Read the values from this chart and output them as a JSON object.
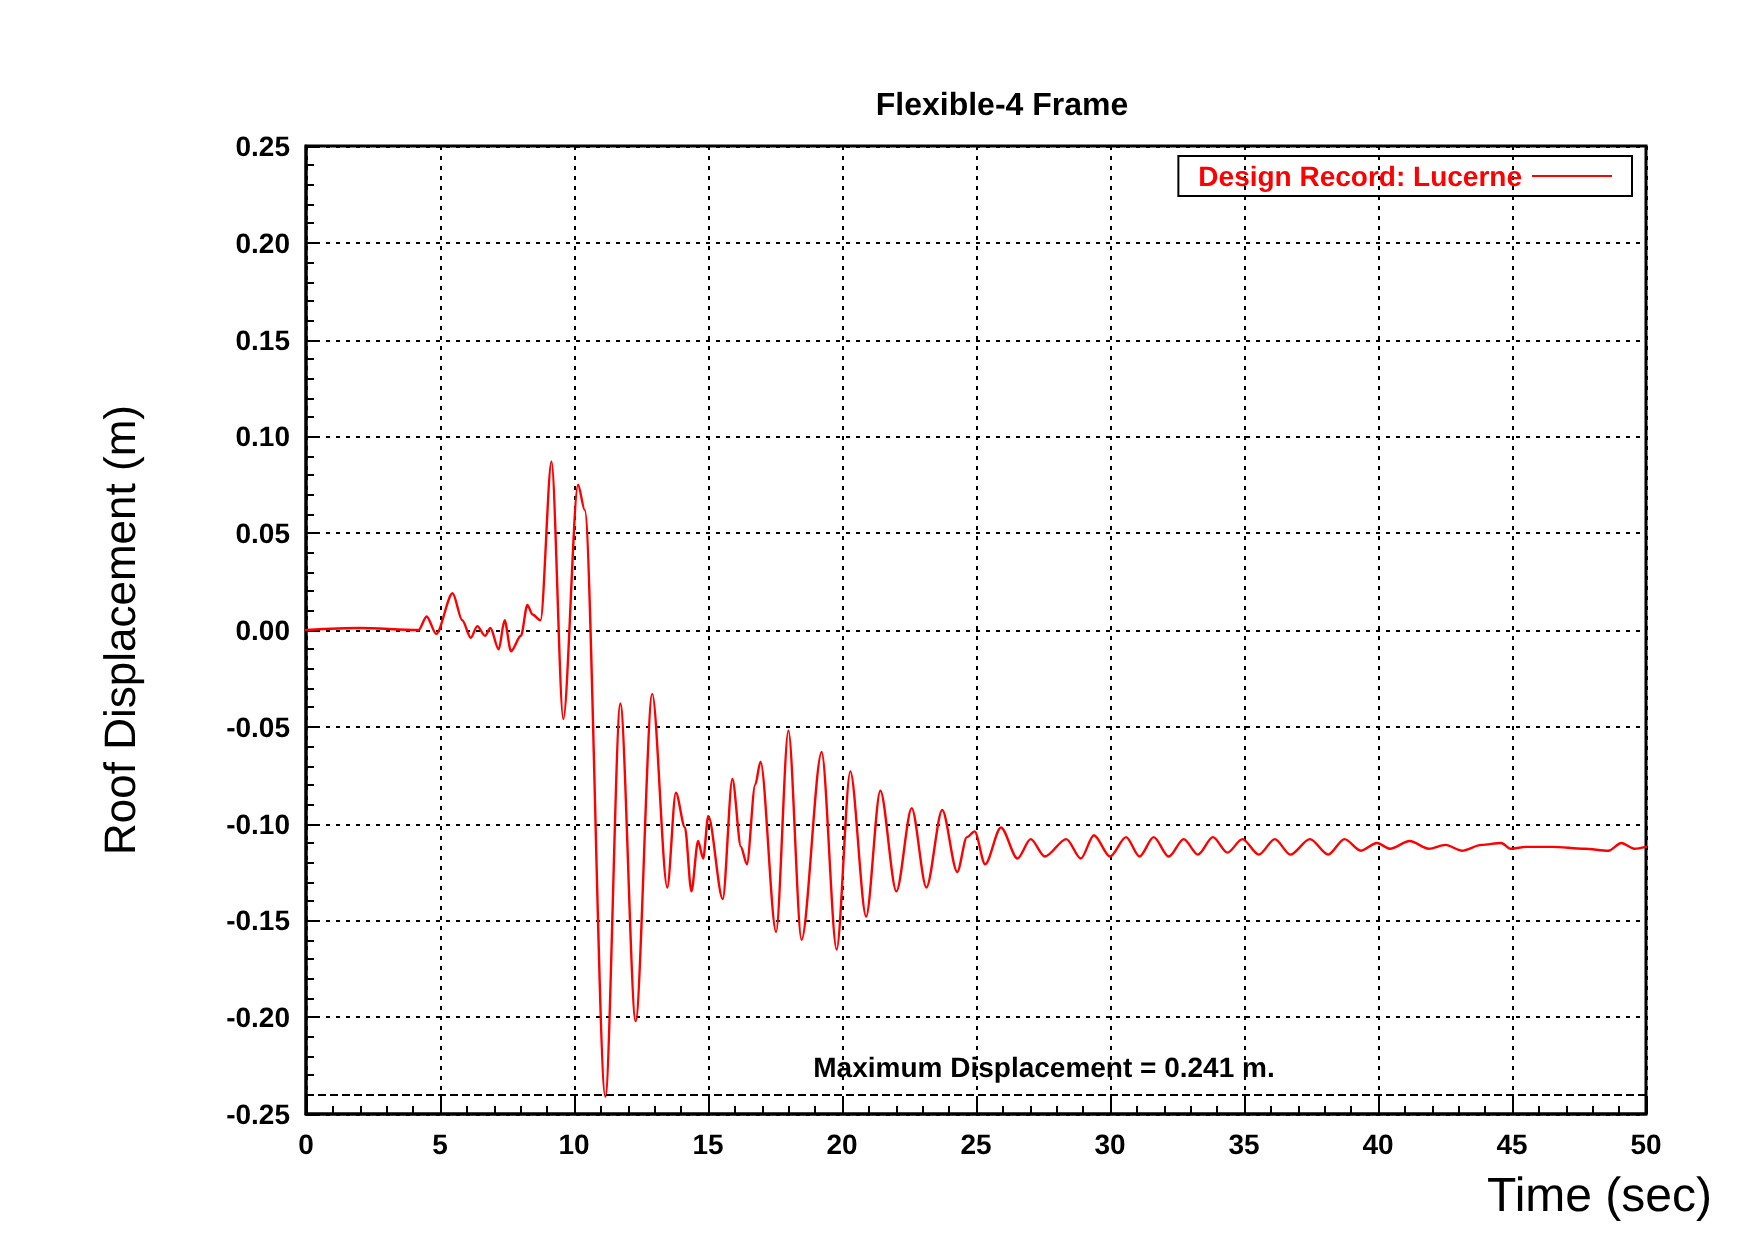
{
  "chart_data": {
    "type": "line",
    "title": "Flexible-4 Frame",
    "xlabel": "Time (sec)",
    "ylabel": "Roof Displacement (m)",
    "xlim": [
      0,
      50
    ],
    "xticks": [
      0,
      5,
      10,
      15,
      20,
      25,
      30,
      35,
      40,
      45,
      50
    ],
    "ylim": [
      -0.25,
      0.25
    ],
    "yticks": [
      {
        "value": -0.25,
        "label": "-0.25"
      },
      {
        "value": -0.2,
        "label": "-0.20"
      },
      {
        "value": -0.15,
        "label": "-0.15"
      },
      {
        "value": -0.1,
        "label": "-0.10"
      },
      {
        "value": -0.05,
        "label": "-0.05"
      },
      {
        "value": 0,
        "label": "0.00"
      },
      {
        "value": 0.05,
        "label": "0.05"
      },
      {
        "value": 0.1,
        "label": "0.10"
      },
      {
        "value": 0.15,
        "label": "0.15"
      },
      {
        "value": 0.2,
        "label": "0.20"
      },
      {
        "value": 0.25,
        "label": "0.25"
      }
    ],
    "grid": true,
    "legend": "top right",
    "marker": "none",
    "line_style": "solid",
    "annotations": [
      "Maximum Displacement = 0.241 m."
    ],
    "ref_lines": [
      {
        "axis": "y",
        "value": -0.241,
        "color": "#000000",
        "line_style": "dashed"
      }
    ],
    "series": [
      {
        "name": "Design Record: Lucerne",
        "color": "#ff0000",
        "x": [
          0,
          2,
          4.2,
          4.5,
          4.86,
          5.47,
          5.83,
          6.15,
          6.39,
          6.68,
          6.88,
          7.19,
          7.41,
          7.65,
          8.02,
          8.26,
          8.45,
          8.75,
          9.16,
          9.6,
          10.15,
          10.4,
          11.17,
          11.73,
          12.3,
          12.92,
          13.48,
          13.8,
          14.14,
          14.38,
          14.63,
          14.82,
          15.01,
          15.55,
          15.91,
          16.23,
          16.45,
          16.76,
          16.96,
          17.54,
          18.0,
          18.49,
          19.24,
          19.8,
          20.31,
          20.9,
          21.43,
          22.03,
          22.6,
          23.15,
          23.74,
          24.3,
          24.66,
          24.95,
          25.34,
          25.93,
          26.55,
          27.04,
          27.57,
          28.37,
          28.91,
          29.4,
          30.0,
          30.6,
          31.1,
          31.63,
          32.19,
          32.75,
          33.28,
          33.84,
          34.38,
          34.94,
          35.55,
          36.15,
          36.73,
          37.46,
          38.14,
          38.75,
          39.36,
          39.96,
          40.45,
          41.18,
          41.9,
          42.52,
          43.13,
          43.86,
          44.6,
          44.95,
          45.55,
          46.5,
          47.7,
          48.6,
          49.08,
          49.56,
          50
        ],
        "values": [
          0,
          0.001,
          0,
          0.007,
          -0.002,
          0.019,
          0.005,
          -0.004,
          0.002,
          -0.003,
          0.001,
          -0.01,
          0.005,
          -0.011,
          -0.003,
          0.013,
          0.008,
          0.005,
          0.087,
          -0.046,
          0.075,
          0.062,
          -0.241,
          -0.038,
          -0.202,
          -0.033,
          -0.133,
          -0.084,
          -0.102,
          -0.135,
          -0.109,
          -0.118,
          -0.096,
          -0.139,
          -0.077,
          -0.112,
          -0.121,
          -0.08,
          -0.068,
          -0.156,
          -0.052,
          -0.16,
          -0.063,
          -0.165,
          -0.073,
          -0.148,
          -0.083,
          -0.135,
          -0.092,
          -0.133,
          -0.093,
          -0.125,
          -0.107,
          -0.104,
          -0.121,
          -0.102,
          -0.118,
          -0.108,
          -0.117,
          -0.108,
          -0.118,
          -0.106,
          -0.117,
          -0.107,
          -0.117,
          -0.107,
          -0.117,
          -0.108,
          -0.116,
          -0.107,
          -0.115,
          -0.108,
          -0.116,
          -0.108,
          -0.116,
          -0.108,
          -0.116,
          -0.108,
          -0.114,
          -0.11,
          -0.113,
          -0.109,
          -0.113,
          -0.111,
          -0.114,
          -0.111,
          -0.11,
          -0.113,
          -0.112,
          -0.112,
          -0.113,
          -0.114,
          -0.11,
          -0.113,
          -0.112
        ]
      }
    ]
  }
}
